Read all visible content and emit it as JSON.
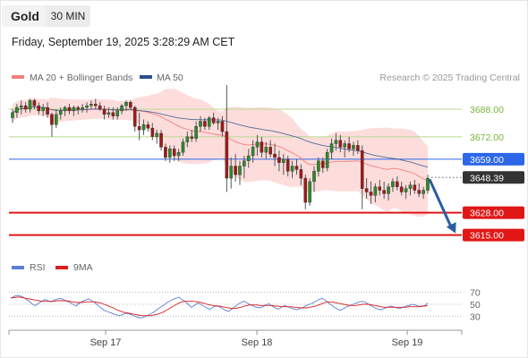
{
  "header": {
    "symbol_tab": "Gold",
    "timeframe_tab": "30 MIN",
    "timestamp": "Friday, September 19, 2025 3:28:29 AM CET"
  },
  "legend": {
    "ma20": "MA 20 + Bollinger Bands",
    "ma50": "MA 50",
    "credit": "Research © 2025 Trading Central",
    "colors": {
      "ma20": "#f2807a",
      "ma50": "#2c4f8a",
      "band": "#fbd7d6"
    }
  },
  "rsi_legend": {
    "rsi": "RSI",
    "ma": "9MA",
    "colors": {
      "rsi": "#5b7fd6",
      "ma": "#dd1e1e"
    }
  },
  "chart_data": [
    {
      "type": "candlestick",
      "ylim": [
        3606,
        3702
      ],
      "x_ticks": [
        "Sep 17",
        "Sep 18",
        "Sep 19"
      ],
      "current_price": "3648.39",
      "levels": [
        {
          "label": "3688.00",
          "value": 3688,
          "color": "#b9d98f",
          "kind": "resistance"
        },
        {
          "label": "3672.00",
          "value": 3672,
          "color": "#b9d98f",
          "kind": "resistance"
        },
        {
          "label": "3659.00",
          "value": 3659,
          "color": "#2d66e8",
          "kind": "pivot"
        },
        {
          "label": "3628.00",
          "value": 3628,
          "color": "#e11616",
          "kind": "support"
        },
        {
          "label": "3615.00",
          "value": 3615,
          "color": "#e11616",
          "kind": "support"
        }
      ],
      "candles": [
        [
          3683,
          3688,
          3680,
          3686
        ],
        [
          3686,
          3691,
          3683,
          3689
        ],
        [
          3689,
          3693,
          3685,
          3690
        ],
        [
          3690,
          3692,
          3686,
          3688
        ],
        [
          3688,
          3694,
          3686,
          3693
        ],
        [
          3693,
          3694,
          3688,
          3690
        ],
        [
          3690,
          3692,
          3685,
          3687
        ],
        [
          3687,
          3691,
          3684,
          3689
        ],
        [
          3689,
          3692,
          3683,
          3685
        ],
        [
          3685,
          3686,
          3672,
          3679
        ],
        [
          3679,
          3688,
          3677,
          3685
        ],
        [
          3685,
          3689,
          3682,
          3687
        ],
        [
          3687,
          3690,
          3684,
          3689
        ],
        [
          3689,
          3691,
          3685,
          3687
        ],
        [
          3687,
          3690,
          3684,
          3689
        ],
        [
          3689,
          3690,
          3685,
          3688
        ],
        [
          3688,
          3691,
          3686,
          3689
        ],
        [
          3689,
          3692,
          3686,
          3690
        ],
        [
          3690,
          3693,
          3688,
          3691
        ],
        [
          3691,
          3694,
          3688,
          3690
        ],
        [
          3690,
          3692,
          3687,
          3688
        ],
        [
          3688,
          3690,
          3682,
          3685
        ],
        [
          3685,
          3689,
          3683,
          3686
        ],
        [
          3686,
          3689,
          3682,
          3684
        ],
        [
          3684,
          3689,
          3682,
          3687
        ],
        [
          3687,
          3691,
          3685,
          3690
        ],
        [
          3690,
          3693,
          3687,
          3692
        ],
        [
          3692,
          3693,
          3688,
          3689
        ],
        [
          3689,
          3690,
          3675,
          3678
        ],
        [
          3678,
          3686,
          3670,
          3676
        ],
        [
          3676,
          3682,
          3673,
          3679
        ],
        [
          3679,
          3681,
          3675,
          3677
        ],
        [
          3677,
          3680,
          3670,
          3672
        ],
        [
          3672,
          3676,
          3668,
          3674
        ],
        [
          3674,
          3676,
          3664,
          3666
        ],
        [
          3666,
          3668,
          3658,
          3660
        ],
        [
          3660,
          3667,
          3657,
          3665
        ],
        [
          3665,
          3667,
          3658,
          3661
        ],
        [
          3661,
          3665,
          3658,
          3663
        ],
        [
          3663,
          3671,
          3661,
          3669
        ],
        [
          3669,
          3675,
          3666,
          3672
        ],
        [
          3672,
          3676,
          3669,
          3671
        ],
        [
          3671,
          3681,
          3669,
          3678
        ],
        [
          3678,
          3684,
          3675,
          3681
        ],
        [
          3681,
          3683,
          3676,
          3678
        ],
        [
          3678,
          3684,
          3676,
          3683
        ],
        [
          3683,
          3686,
          3679,
          3680
        ],
        [
          3680,
          3683,
          3676,
          3681
        ],
        [
          3681,
          3684,
          3672,
          3675
        ],
        [
          3675,
          3702,
          3640,
          3648
        ],
        [
          3648,
          3660,
          3642,
          3655
        ],
        [
          3655,
          3662,
          3646,
          3650
        ],
        [
          3650,
          3658,
          3644,
          3655
        ],
        [
          3655,
          3661,
          3648,
          3658
        ],
        [
          3658,
          3665,
          3654,
          3661
        ],
        [
          3661,
          3670,
          3657,
          3666
        ],
        [
          3666,
          3673,
          3661,
          3669
        ],
        [
          3669,
          3672,
          3660,
          3663
        ],
        [
          3663,
          3669,
          3659,
          3666
        ],
        [
          3666,
          3670,
          3660,
          3662
        ],
        [
          3662,
          3668,
          3655,
          3660
        ],
        [
          3660,
          3664,
          3652,
          3657
        ],
        [
          3657,
          3662,
          3650,
          3659
        ],
        [
          3659,
          3661,
          3649,
          3652
        ],
        [
          3652,
          3658,
          3648,
          3655
        ],
        [
          3655,
          3659,
          3650,
          3653
        ],
        [
          3653,
          3656,
          3644,
          3648
        ],
        [
          3648,
          3650,
          3630,
          3634
        ],
        [
          3634,
          3648,
          3632,
          3646
        ],
        [
          3646,
          3655,
          3640,
          3652
        ],
        [
          3652,
          3660,
          3649,
          3658
        ],
        [
          3658,
          3660,
          3651,
          3654
        ],
        [
          3654,
          3665,
          3652,
          3663
        ],
        [
          3663,
          3671,
          3659,
          3668
        ],
        [
          3668,
          3674,
          3664,
          3670
        ],
        [
          3670,
          3673,
          3663,
          3666
        ],
        [
          3666,
          3670,
          3660,
          3668
        ],
        [
          3668,
          3672,
          3663,
          3665
        ],
        [
          3665,
          3669,
          3661,
          3667
        ],
        [
          3667,
          3670,
          3662,
          3664
        ],
        [
          3664,
          3667,
          3630,
          3642
        ],
        [
          3642,
          3648,
          3636,
          3640
        ],
        [
          3640,
          3646,
          3633,
          3638
        ],
        [
          3638,
          3645,
          3634,
          3643
        ],
        [
          3643,
          3647,
          3638,
          3641
        ],
        [
          3641,
          3646,
          3636,
          3639
        ],
        [
          3639,
          3645,
          3635,
          3643
        ],
        [
          3643,
          3648,
          3640,
          3646
        ],
        [
          3646,
          3649,
          3641,
          3643
        ],
        [
          3643,
          3646,
          3638,
          3640
        ],
        [
          3640,
          3644,
          3636,
          3642
        ],
        [
          3642,
          3646,
          3638,
          3644
        ],
        [
          3644,
          3647,
          3639,
          3641
        ],
        [
          3641,
          3645,
          3637,
          3639
        ],
        [
          3639,
          3643,
          3636,
          3641
        ],
        [
          3641,
          3650,
          3639,
          3648
        ]
      ],
      "forecast": {
        "from": 3648.39,
        "to": 3615
      }
    },
    {
      "type": "line",
      "name": "RSI panel",
      "ylim": [
        20,
        80
      ],
      "y_ticks": [
        "70",
        "50",
        "30"
      ],
      "series": [
        {
          "name": "RSI",
          "values": [
            60,
            63,
            65,
            64,
            62,
            58,
            55,
            50,
            48,
            52,
            55,
            58,
            56,
            54,
            57,
            59,
            60,
            58,
            55,
            53,
            50,
            47,
            52,
            55,
            57,
            59,
            56,
            53,
            48,
            44,
            40,
            38,
            36,
            34,
            32,
            31,
            33,
            35,
            34,
            32,
            30,
            28,
            27,
            29,
            31,
            34,
            37,
            41,
            45,
            48,
            52,
            55,
            58,
            60,
            62,
            58,
            55,
            50,
            45,
            48,
            52,
            50,
            47,
            44,
            42,
            45,
            48,
            46,
            43,
            40,
            38,
            42,
            46,
            50,
            53,
            55,
            52,
            49,
            47,
            45,
            44,
            46,
            49,
            51,
            47,
            44,
            42,
            45,
            48,
            46,
            44,
            42,
            41,
            43,
            45,
            48,
            50,
            52,
            55,
            58,
            60,
            57,
            53,
            49,
            45,
            42,
            40,
            43,
            46,
            48,
            50,
            52,
            54,
            55,
            53,
            50,
            47,
            44,
            42,
            41,
            43,
            45,
            47,
            46,
            44,
            43,
            45,
            47,
            48,
            50,
            49,
            47,
            46,
            48,
            52
          ]
        },
        {
          "name": "9MA",
          "values": [
            61,
            61,
            62,
            62,
            61,
            60,
            59,
            58,
            57,
            56,
            55,
            55,
            55,
            55,
            55,
            56,
            56,
            56,
            56,
            55,
            54,
            53,
            53,
            53,
            54,
            54,
            54,
            54,
            53,
            52,
            50,
            48,
            46,
            44,
            41,
            39,
            37,
            36,
            35,
            34,
            33,
            32,
            31,
            31,
            31,
            31,
            32,
            33,
            35,
            37,
            40,
            43,
            46,
            49,
            52,
            54,
            55,
            55,
            55,
            55,
            54,
            53,
            52,
            50,
            49,
            48,
            47,
            47,
            46,
            45,
            44,
            43,
            43,
            44,
            45,
            47,
            48,
            49,
            49,
            49,
            48,
            48,
            48,
            48,
            48,
            47,
            47,
            46,
            46,
            46,
            46,
            45,
            45,
            44,
            44,
            44,
            45,
            46,
            47,
            49,
            51,
            53,
            54,
            54,
            53,
            52,
            51,
            50,
            49,
            48,
            48,
            48,
            49,
            50,
            50,
            50,
            49,
            48,
            47,
            46,
            45,
            45,
            45,
            45,
            45,
            45,
            45,
            45,
            46,
            46,
            46,
            46,
            47,
            47,
            48
          ]
        }
      ]
    }
  ]
}
